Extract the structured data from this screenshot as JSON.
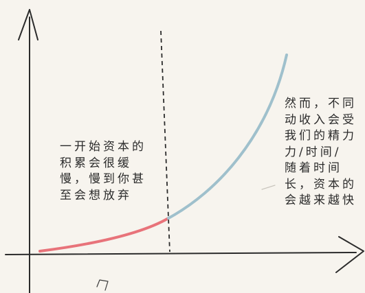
{
  "colors": {
    "background": "#f7f4ee",
    "ink": "#2b2b2b",
    "curve_early": "#e8737a",
    "curve_late": "#9fc0cc"
  },
  "annotations": {
    "left_lines": [
      "一开始资本的",
      "积累会很缓",
      "慢，慢到你甚",
      "至会想放弃"
    ],
    "right_lines": [
      "然而，不同",
      "动收入会受",
      "我们的精力",
      "力/时间/",
      "随着时间",
      "长，资本的",
      "会越来越快"
    ]
  },
  "icons": {
    "y_axis_arrow": "arrow-up-icon",
    "x_axis_arrow": "arrow-right-icon"
  }
}
